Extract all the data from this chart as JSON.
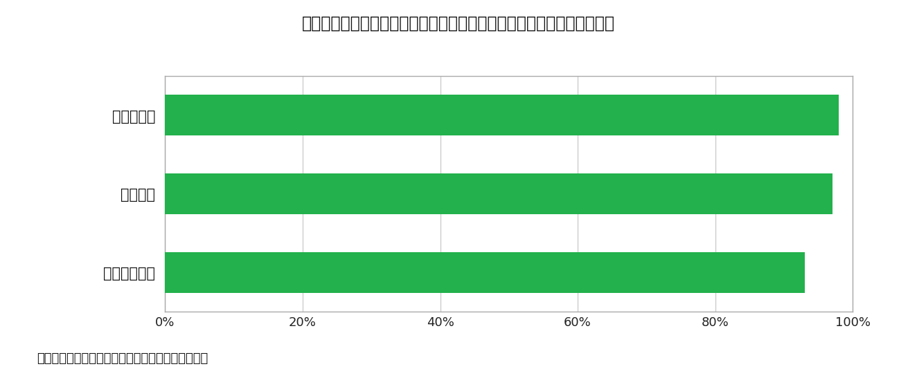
{
  "title": "図表：ＥＵのグリーン移行に必要な原材料の調達先に占める中国の割合",
  "categories": [
    "レアアース",
    "リチウム",
    "マグネシウム"
  ],
  "values": [
    98,
    97,
    93
  ],
  "bar_color": "#22b14c",
  "background_color": "#ffffff",
  "plot_bg_color": "#ffffff",
  "outer_box_color": "#cccccc",
  "xlim": [
    0,
    100
  ],
  "tick_labels": [
    "0%",
    "20%",
    "40%",
    "60%",
    "80%",
    "100%"
  ],
  "tick_positions": [
    0,
    20,
    40,
    60,
    80,
    100
  ],
  "footnote": "（フォンデアライエン欧州委員長講演を基に作成）",
  "title_fontsize": 17,
  "label_fontsize": 15,
  "tick_fontsize": 13,
  "footnote_fontsize": 13,
  "bar_height": 0.52,
  "grid_color": "#cccccc",
  "border_color": "#aaaaaa"
}
